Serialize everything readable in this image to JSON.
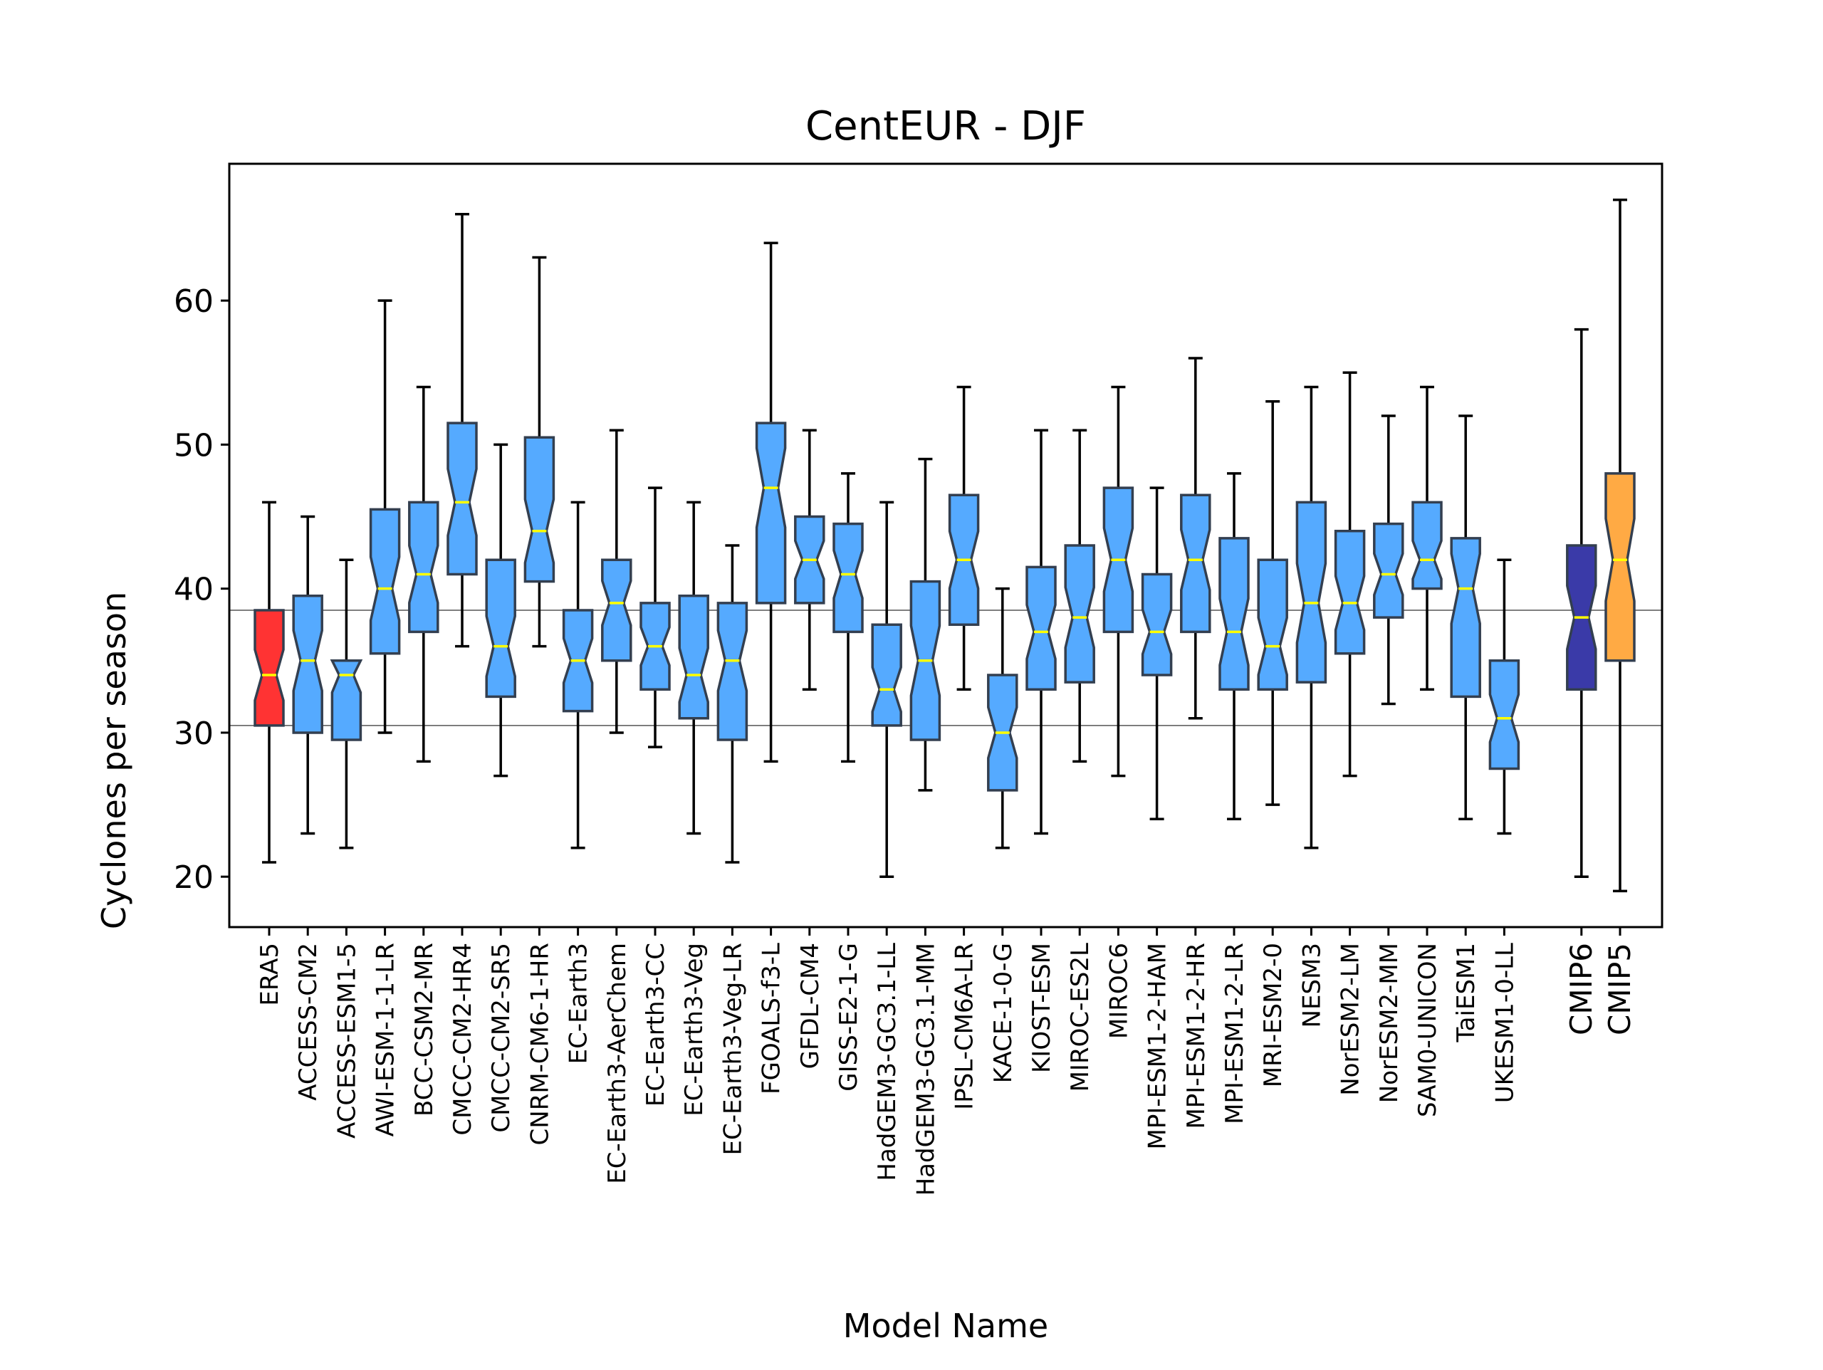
{
  "chart_data": {
    "type": "boxplot",
    "title": "CentEUR - DJF",
    "xlabel": "Model Name",
    "ylabel": "Cyclones per season",
    "ylim": [
      16.5,
      69.5
    ],
    "yticks": [
      20,
      30,
      40,
      50,
      60
    ],
    "reference_lines": [
      30.5,
      38.5
    ],
    "grid": false,
    "colors": {
      "ERA5": "#ff3333",
      "model": "#55aaff",
      "CMIP6": "#3a3aa8",
      "CMIP5": "#ffaa44",
      "median": "#ffff00",
      "edge": "#333f50"
    },
    "boxes": [
      {
        "label": "ERA5",
        "group": "ERA5",
        "whislo": 21,
        "q1": 30.5,
        "med": 34,
        "q3": 38.5,
        "whishi": 46
      },
      {
        "label": "ACCESS-CM2",
        "group": "model",
        "whislo": 23,
        "q1": 30,
        "med": 35,
        "q3": 39.5,
        "whishi": 45
      },
      {
        "label": "ACCESS-ESM1-5",
        "group": "model",
        "whislo": 22,
        "q1": 29.5,
        "med": 34,
        "q3": 35,
        "whishi": 42
      },
      {
        "label": "AWI-ESM-1-1-LR",
        "group": "model",
        "whislo": 30,
        "q1": 35.5,
        "med": 40,
        "q3": 45.5,
        "whishi": 60
      },
      {
        "label": "BCC-CSM2-MR",
        "group": "model",
        "whislo": 28,
        "q1": 37,
        "med": 41,
        "q3": 46,
        "whishi": 54
      },
      {
        "label": "CMCC-CM2-HR4",
        "group": "model",
        "whislo": 36,
        "q1": 41,
        "med": 46,
        "q3": 51.5,
        "whishi": 66
      },
      {
        "label": "CMCC-CM2-SR5",
        "group": "model",
        "whislo": 27,
        "q1": 32.5,
        "med": 36,
        "q3": 42,
        "whishi": 50
      },
      {
        "label": "CNRM-CM6-1-HR",
        "group": "model",
        "whislo": 36,
        "q1": 40.5,
        "med": 44,
        "q3": 50.5,
        "whishi": 63
      },
      {
        "label": "EC-Earth3",
        "group": "model",
        "whislo": 22,
        "q1": 31.5,
        "med": 35,
        "q3": 38.5,
        "whishi": 46
      },
      {
        "label": "EC-Earth3-AerChem",
        "group": "model",
        "whislo": 30,
        "q1": 35,
        "med": 39,
        "q3": 42,
        "whishi": 51
      },
      {
        "label": "EC-Earth3-CC",
        "group": "model",
        "whislo": 29,
        "q1": 33,
        "med": 36,
        "q3": 39,
        "whishi": 47
      },
      {
        "label": "EC-Earth3-Veg",
        "group": "model",
        "whislo": 23,
        "q1": 31,
        "med": 34,
        "q3": 39.5,
        "whishi": 46
      },
      {
        "label": "EC-Earth3-Veg-LR",
        "group": "model",
        "whislo": 21,
        "q1": 29.5,
        "med": 35,
        "q3": 39,
        "whishi": 43
      },
      {
        "label": "FGOALS-f3-L",
        "group": "model",
        "whislo": 28,
        "q1": 39,
        "med": 47,
        "q3": 51.5,
        "whishi": 64
      },
      {
        "label": "GFDL-CM4",
        "group": "model",
        "whislo": 33,
        "q1": 39,
        "med": 42,
        "q3": 45,
        "whishi": 51
      },
      {
        "label": "GISS-E2-1-G",
        "group": "model",
        "whislo": 28,
        "q1": 37,
        "med": 41,
        "q3": 44.5,
        "whishi": 48
      },
      {
        "label": "HadGEM3-GC3.1-LL",
        "group": "model",
        "whislo": 20,
        "q1": 30.5,
        "med": 33,
        "q3": 37.5,
        "whishi": 46
      },
      {
        "label": "HadGEM3-GC3.1-MM",
        "group": "model",
        "whislo": 26,
        "q1": 29.5,
        "med": 35,
        "q3": 40.5,
        "whishi": 49
      },
      {
        "label": "IPSL-CM6A-LR",
        "group": "model",
        "whislo": 33,
        "q1": 37.5,
        "med": 42,
        "q3": 46.5,
        "whishi": 54
      },
      {
        "label": "KACE-1-0-G",
        "group": "model",
        "whislo": 22,
        "q1": 26,
        "med": 30,
        "q3": 34,
        "whishi": 40
      },
      {
        "label": "KIOST-ESM",
        "group": "model",
        "whislo": 23,
        "q1": 33,
        "med": 37,
        "q3": 41.5,
        "whishi": 51
      },
      {
        "label": "MIROC-ES2L",
        "group": "model",
        "whislo": 28,
        "q1": 33.5,
        "med": 38,
        "q3": 43,
        "whishi": 51
      },
      {
        "label": "MIROC6",
        "group": "model",
        "whislo": 27,
        "q1": 37,
        "med": 42,
        "q3": 47,
        "whishi": 54
      },
      {
        "label": "MPI-ESM1-2-HAM",
        "group": "model",
        "whislo": 24,
        "q1": 34,
        "med": 37,
        "q3": 41,
        "whishi": 47
      },
      {
        "label": "MPI-ESM1-2-HR",
        "group": "model",
        "whislo": 31,
        "q1": 37,
        "med": 42,
        "q3": 46.5,
        "whishi": 56
      },
      {
        "label": "MPI-ESM1-2-LR",
        "group": "model",
        "whislo": 24,
        "q1": 33,
        "med": 37,
        "q3": 43.5,
        "whishi": 48
      },
      {
        "label": "MRI-ESM2-0",
        "group": "model",
        "whislo": 25,
        "q1": 33,
        "med": 36,
        "q3": 42,
        "whishi": 53
      },
      {
        "label": "NESM3",
        "group": "model",
        "whislo": 22,
        "q1": 33.5,
        "med": 39,
        "q3": 46,
        "whishi": 54
      },
      {
        "label": "NorESM2-LM",
        "group": "model",
        "whislo": 27,
        "q1": 35.5,
        "med": 39,
        "q3": 44,
        "whishi": 55
      },
      {
        "label": "NorESM2-MM",
        "group": "model",
        "whislo": 32,
        "q1": 38,
        "med": 41,
        "q3": 44.5,
        "whishi": 52
      },
      {
        "label": "SAM0-UNICON",
        "group": "model",
        "whislo": 33,
        "q1": 40,
        "med": 42,
        "q3": 46,
        "whishi": 54
      },
      {
        "label": "TaiESM1",
        "group": "model",
        "whislo": 24,
        "q1": 32.5,
        "med": 40,
        "q3": 43.5,
        "whishi": 52
      },
      {
        "label": "UKESM1-0-LL",
        "group": "model",
        "whislo": 23,
        "q1": 27.5,
        "med": 31,
        "q3": 35,
        "whishi": 42
      },
      {
        "label": "CMIP6",
        "group": "CMIP6",
        "whislo": 20,
        "q1": 33,
        "med": 38,
        "q3": 43,
        "whishi": 58
      },
      {
        "label": "CMIP5",
        "group": "CMIP5",
        "whislo": 19,
        "q1": 35,
        "med": 42,
        "q3": 48,
        "whishi": 67
      }
    ]
  }
}
